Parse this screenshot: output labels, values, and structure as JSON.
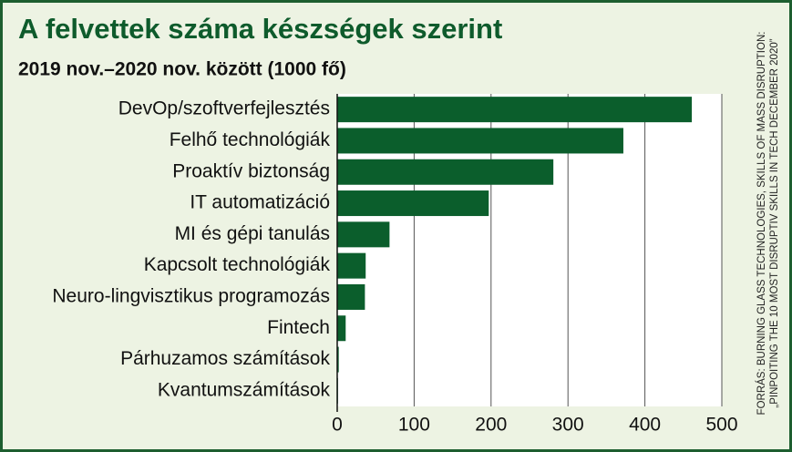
{
  "chart_data": {
    "type": "bar",
    "orientation": "horizontal",
    "title": "A felvettek száma készségek szerint",
    "subtitle": "2019 nov.–2020 nov. között (1000 fő)",
    "source": [
      "FORRÁS: BURNING GLASS TECHNOLOGIES, SKILLS OF MASS DISRUPTION:",
      "„PINPOITING THE 10 MOST DISRUPTIV SKILLS IN TECH DECEMBER 2020”"
    ],
    "categories": [
      "DevOp/szoftverfejlesztés",
      "Felhő technológiák",
      "Proaktív biztonság",
      "IT automatizáció",
      "MI és gépi tanulás",
      "Kapcsolt technológiák",
      "Neuro-lingvisztikus programozás",
      "Fintech",
      "Párhuzamos számítások",
      "Kvantumszámítások"
    ],
    "values": [
      461,
      372,
      281,
      197,
      68,
      37,
      36,
      11,
      2,
      1
    ],
    "color": "#0b5e2c",
    "xlim": [
      0,
      500
    ],
    "xticks": [
      0,
      100,
      200,
      300,
      400,
      500
    ],
    "grid": true
  }
}
